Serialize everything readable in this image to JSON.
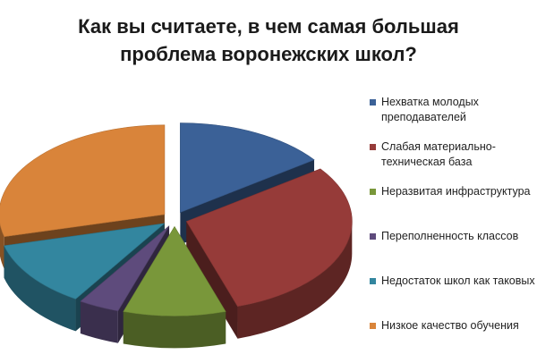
{
  "chart_data": {
    "type": "pie",
    "title_lines": [
      "Как вы считаете, в чем самая большая",
      "проблема воронежских школ?"
    ],
    "slices": [
      {
        "label": "Нехватка молодых\nпреподавателей",
        "value": 15,
        "color": "#3b6197"
      },
      {
        "label": "Слабая материально-\nтехническая база",
        "value": 30,
        "color": "#963b39"
      },
      {
        "label": "Неразвитая инфраструктура",
        "value": 10,
        "color": "#79973a"
      },
      {
        "label": "Переполненность классов",
        "value": 4,
        "color": "#5e4b7c"
      },
      {
        "label": "Недостаток школ как таковых",
        "value": 12,
        "color": "#33869f"
      },
      {
        "label": "Низкое качество обучения",
        "value": 29,
        "color": "#d9843a"
      }
    ],
    "legend_position": "right",
    "style": "exploded-3d"
  }
}
